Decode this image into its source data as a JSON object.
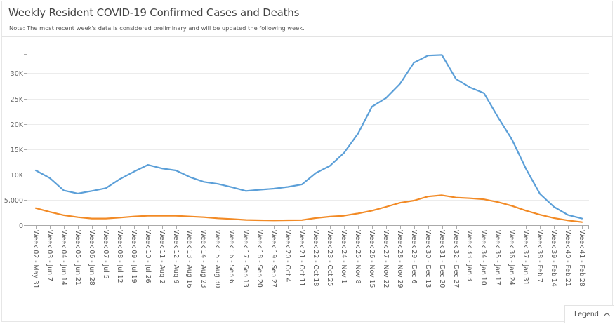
{
  "header": {
    "title": "Weekly Resident COVID-19 Confirmed Cases and Deaths",
    "note": "Note: The most recent week's data is considered preliminary and will be updated the following week."
  },
  "legend_button": {
    "label": "Legend",
    "icon": "chevron-up-icon"
  },
  "colors": {
    "cases": "#5b9fd8",
    "deaths": "#f28a25",
    "grid": "#ececec",
    "axis": "#aaaaaa"
  },
  "chart_data": {
    "type": "line",
    "title": "Weekly Resident COVID-19 Confirmed Cases and Deaths",
    "xlabel": "",
    "ylabel": "",
    "ylim": [
      0,
      33800
    ],
    "yticks": [
      0,
      5000,
      10000,
      15000,
      20000,
      25000,
      30000
    ],
    "ytick_labels": [
      "0",
      "5,000",
      "10K",
      "15K",
      "20K",
      "25K",
      "30K"
    ],
    "grid": true,
    "legend": "collapsed (bottom-right button)",
    "categories": [
      "Week 02 - May 31",
      "Week 03 - Jun 7",
      "Week 04 - Jun 14",
      "Week 05 - Jun 21",
      "Week 06 - Jun 28",
      "Week 07 - Jul 5",
      "Week 08 - Jul 12",
      "Week 09 - Jul 19",
      "Week 10 - Jul 26",
      "Week 11 - Aug 2",
      "Week 12 - Aug 9",
      "Week 13 - Aug 16",
      "Week 14 - Aug 23",
      "Week 15 - Aug 30",
      "Week 16 - Sep 6",
      "Week 17 - Sep 13",
      "Week 18 - Sep 20",
      "Week 19 - Sep 27",
      "Week 20 - Oct 4",
      "Week 21 - Oct 11",
      "Week 22 - Oct 18",
      "Week 23 - Oct 25",
      "Week 24 - Nov 1",
      "Week 25 - Nov 8",
      "Week 26 - Nov 15",
      "Week 27 - Nov 22",
      "Week 28 - Nov 29",
      "Week 29 - Dec 6",
      "Week 30 - Dec 13",
      "Week 31 - Dec 20",
      "Week 32 - Dec 27",
      "Week 33 - Jan 3",
      "Week 34 - Jan 10",
      "Week 35 - Jan 17",
      "Week 36 - Jan 24",
      "Week 37 - Jan 31",
      "Week 38 - Feb 7",
      "Week 39 - Feb 14",
      "Week 40 - Feb 21",
      "Week 41 - Feb 28"
    ],
    "series": [
      {
        "name": "Confirmed Cases",
        "color": "#5b9fd8",
        "values": [
          10800,
          9300,
          6850,
          6250,
          6750,
          7300,
          9100,
          10550,
          11900,
          11200,
          10800,
          9500,
          8550,
          8150,
          7500,
          6750,
          7000,
          7200,
          7550,
          8050,
          10300,
          11700,
          14250,
          18050,
          23400,
          25100,
          27900,
          32100,
          33500,
          33600,
          28850,
          27200,
          26050,
          21300,
          16900,
          11100,
          6150,
          3600,
          2000,
          1300
        ]
      },
      {
        "name": "Deaths",
        "color": "#f28a25",
        "values": [
          3350,
          2600,
          1950,
          1570,
          1300,
          1300,
          1480,
          1700,
          1850,
          1850,
          1850,
          1700,
          1570,
          1350,
          1200,
          1020,
          970,
          930,
          970,
          1000,
          1400,
          1670,
          1850,
          2300,
          2850,
          3600,
          4400,
          4850,
          5650,
          5900,
          5450,
          5300,
          5100,
          4550,
          3800,
          2850,
          2050,
          1400,
          930,
          600
        ]
      }
    ]
  }
}
